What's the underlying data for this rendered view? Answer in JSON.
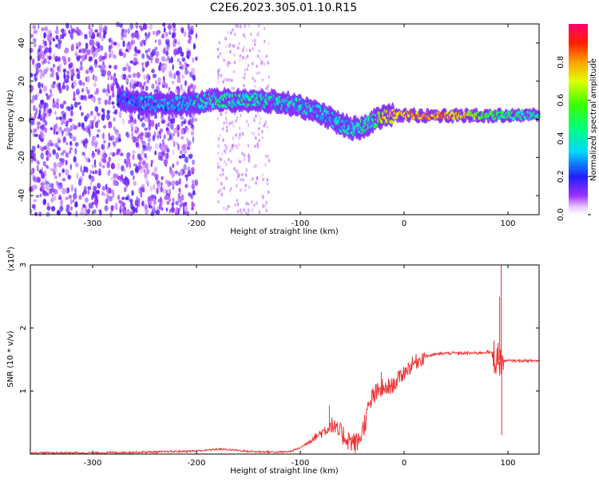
{
  "title": "C2E6.2023.305.01.10.R15",
  "chart_data": [
    {
      "type": "heatmap",
      "xlabel": "Height of straight line (km)",
      "ylabel": "Frequency (Hz)",
      "xlim": [
        -360,
        130
      ],
      "ylim": [
        -50,
        50
      ],
      "xticks": [
        -300,
        -200,
        -100,
        0,
        100
      ],
      "yticks": [
        -40,
        -20,
        0,
        20,
        40
      ],
      "colorbar": {
        "label": "Normalized spectral amplitude",
        "range": [
          0,
          1
        ],
        "ticks": [
          "0.0",
          "0.2",
          "0.4",
          "0.6",
          "0.8"
        ],
        "tick_values": [
          0,
          0.2,
          0.4,
          0.6,
          0.8
        ]
      },
      "ridge": {
        "x": [
          -275,
          -260,
          -240,
          -220,
          -200,
          -180,
          -160,
          -140,
          -120,
          -100,
          -90,
          -80,
          -70,
          -60,
          -50,
          -40,
          -30,
          -20,
          -10,
          0,
          20,
          40,
          60,
          80,
          90,
          100,
          130
        ],
        "freq": [
          11,
          9,
          8,
          8,
          9,
          10,
          10,
          10,
          9,
          7,
          5,
          3,
          0,
          -3,
          -5,
          -4,
          -1,
          1,
          2,
          2,
          2,
          2,
          2,
          2,
          2,
          2,
          2
        ],
        "amplitude": [
          0.3,
          0.35,
          0.4,
          0.4,
          0.45,
          0.5,
          0.5,
          0.5,
          0.45,
          0.45,
          0.45,
          0.4,
          0.4,
          0.45,
          0.5,
          0.5,
          0.55,
          0.8,
          0.85,
          0.85,
          0.9,
          0.9,
          0.8,
          0.6,
          0.55,
          0.55,
          0.5
        ]
      },
      "noise_region": {
        "x_from": -360,
        "x_to": -200,
        "also": [
          -180,
          -130
        ],
        "freq_range": [
          -50,
          50
        ]
      }
    },
    {
      "type": "line",
      "xlabel": "Height of straight line (km)",
      "ylabel": "SNR (10 * v/v)",
      "y_scale_label": "(x10",
      "y_scale_exp": "4",
      "y_scale_close": ")",
      "xlim": [
        -360,
        130
      ],
      "ylim": [
        0,
        3
      ],
      "xticks": [
        -300,
        -200,
        -100,
        0,
        100
      ],
      "yticks": [
        1,
        2,
        3
      ],
      "series": [
        {
          "color": "#ee3333",
          "x": [
            -360,
            -300,
            -250,
            -220,
            -200,
            -190,
            -180,
            -170,
            -160,
            -150,
            -120,
            -110,
            -100,
            -90,
            -80,
            -75,
            -70,
            -65,
            -60,
            -55,
            -50,
            -45,
            -40,
            -35,
            -30,
            -25,
            -20,
            -15,
            -10,
            -5,
            0,
            10,
            20,
            30,
            40,
            50,
            60,
            70,
            80,
            85,
            90,
            92,
            94,
            96,
            100,
            110,
            120,
            130
          ],
          "y": [
            0.02,
            0.02,
            0.03,
            0.04,
            0.05,
            0.06,
            0.08,
            0.07,
            0.06,
            0.04,
            0.03,
            0.04,
            0.1,
            0.2,
            0.3,
            0.35,
            0.42,
            0.3,
            0.25,
            0.18,
            0.12,
            0.1,
            0.3,
            0.6,
            0.85,
            0.9,
            1.0,
            1.05,
            1.1,
            1.2,
            1.3,
            1.45,
            1.55,
            1.58,
            1.6,
            1.6,
            1.6,
            1.6,
            1.62,
            1.6,
            1.5,
            1.5,
            1.48,
            1.48,
            1.48,
            1.48,
            1.48,
            1.48
          ]
        }
      ],
      "spikes": [
        {
          "x": -72,
          "y": 0.77
        },
        {
          "x": -30,
          "y": 1.05
        },
        {
          "x": -22,
          "y": 1.3
        },
        {
          "x": -15,
          "y": 1.2
        },
        {
          "x": 92,
          "y": 2.5
        },
        {
          "x": 93.5,
          "y": 3.0
        },
        {
          "x": 94,
          "y": 0.3
        }
      ]
    }
  ]
}
